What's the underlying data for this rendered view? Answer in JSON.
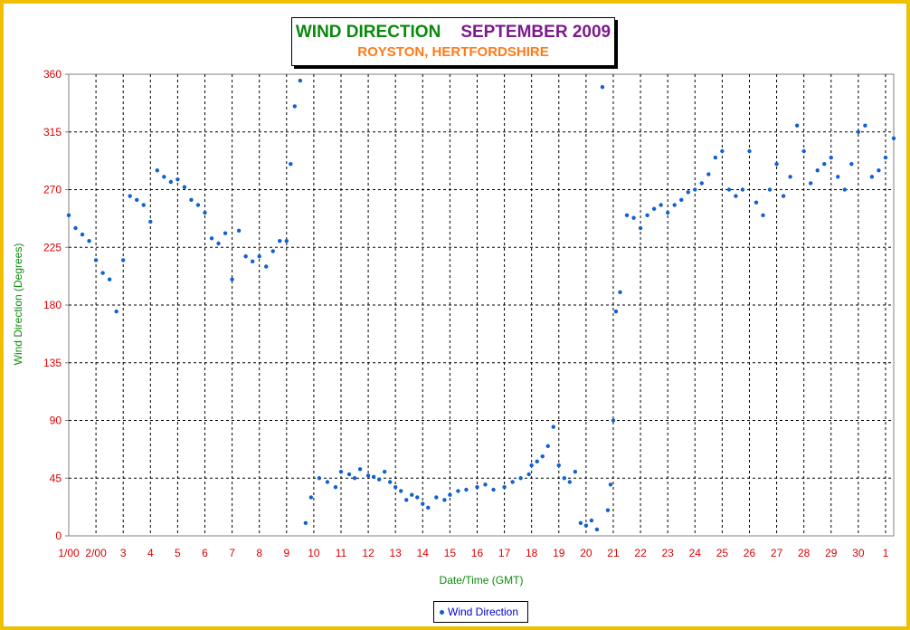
{
  "title": {
    "part1": "WIND DIRECTION",
    "part2": "SEPTEMBER 2009",
    "subtitle": "ROYSTON, HERTFORDSHIRE"
  },
  "colors": {
    "frame": "#f0c000",
    "series": "#1060d0",
    "axis_labels": "#dd0000",
    "axis_titles": "#0a8a0a"
  },
  "legend": {
    "label": "Wind Direction"
  },
  "chart_data": {
    "type": "scatter",
    "title": "WIND DIRECTION    SEPTEMBER 2009",
    "subtitle": "ROYSTON, HERTFORDSHIRE",
    "xlabel": "Date/Time (GMT)",
    "ylabel": "Wind Direction (Degrees)",
    "ylim": [
      0,
      360
    ],
    "yticks": [
      0,
      45,
      90,
      135,
      180,
      225,
      270,
      315,
      360
    ],
    "x_tick_labels": [
      "1/00",
      "2/00",
      "3",
      "4",
      "5",
      "6",
      "7",
      "8",
      "9",
      "10",
      "11",
      "12",
      "13",
      "14",
      "15",
      "16",
      "17",
      "18",
      "19",
      "20",
      "21",
      "22",
      "23",
      "24",
      "25",
      "26",
      "27",
      "28",
      "29",
      "30",
      "1"
    ],
    "grid": true,
    "legend_position": "bottom-center",
    "series": [
      {
        "name": "Wind Direction",
        "color": "#1060d0",
        "x": [
          1.0,
          1.25,
          1.5,
          1.75,
          2.0,
          2.25,
          2.5,
          2.75,
          3.0,
          3.25,
          3.5,
          3.75,
          4.0,
          4.25,
          4.5,
          4.75,
          5.0,
          5.25,
          5.5,
          5.75,
          6.0,
          6.25,
          6.5,
          6.75,
          7.0,
          7.25,
          7.5,
          7.75,
          8.0,
          8.25,
          8.5,
          8.75,
          9.0,
          9.15,
          9.3,
          9.5,
          9.7,
          9.9,
          10.2,
          10.5,
          10.8,
          11.0,
          11.3,
          11.5,
          11.7,
          12.0,
          12.2,
          12.4,
          12.6,
          12.8,
          13.0,
          13.2,
          13.4,
          13.6,
          13.8,
          14.0,
          14.2,
          14.5,
          14.8,
          15.0,
          15.3,
          15.6,
          16.0,
          16.3,
          16.6,
          17.0,
          17.3,
          17.6,
          17.9,
          18.0,
          18.2,
          18.4,
          18.6,
          18.8,
          19.0,
          19.2,
          19.4,
          19.6,
          19.8,
          20.0,
          20.2,
          20.4,
          20.6,
          20.8,
          20.9,
          21.0,
          21.1,
          21.25,
          21.5,
          21.75,
          22.0,
          22.25,
          22.5,
          22.75,
          23.0,
          23.25,
          23.5,
          23.75,
          24.0,
          24.25,
          24.5,
          24.75,
          25.0,
          25.25,
          25.5,
          25.75,
          26.0,
          26.25,
          26.5,
          26.75,
          27.0,
          27.25,
          27.5,
          27.75,
          28.0,
          28.25,
          28.5,
          28.75,
          29.0,
          29.25,
          29.5,
          29.75,
          30.0,
          30.25,
          30.5,
          30.75,
          31.0,
          31.3
        ],
        "y": [
          250,
          240,
          235,
          230,
          215,
          205,
          200,
          175,
          215,
          265,
          262,
          258,
          245,
          285,
          280,
          276,
          278,
          272,
          262,
          258,
          252,
          232,
          228,
          236,
          200,
          238,
          218,
          214,
          218,
          210,
          222,
          230,
          230,
          290,
          335,
          355,
          10,
          30,
          45,
          42,
          38,
          50,
          48,
          45,
          52,
          47,
          46,
          44,
          50,
          42,
          38,
          35,
          28,
          32,
          30,
          25,
          22,
          30,
          28,
          32,
          35,
          36,
          38,
          40,
          36,
          38,
          42,
          45,
          48,
          55,
          58,
          62,
          70,
          85,
          55,
          45,
          42,
          50,
          10,
          8,
          12,
          5,
          350,
          20,
          40,
          90,
          175,
          190,
          250,
          248,
          240,
          250,
          255,
          258,
          252,
          258,
          262,
          268,
          270,
          275,
          282,
          295,
          300,
          270,
          265,
          270,
          300,
          260,
          250,
          270,
          290,
          265,
          280,
          320,
          300,
          275,
          285,
          290,
          295,
          280,
          270,
          290,
          315,
          320,
          280,
          285,
          295,
          310
        ]
      }
    ]
  }
}
